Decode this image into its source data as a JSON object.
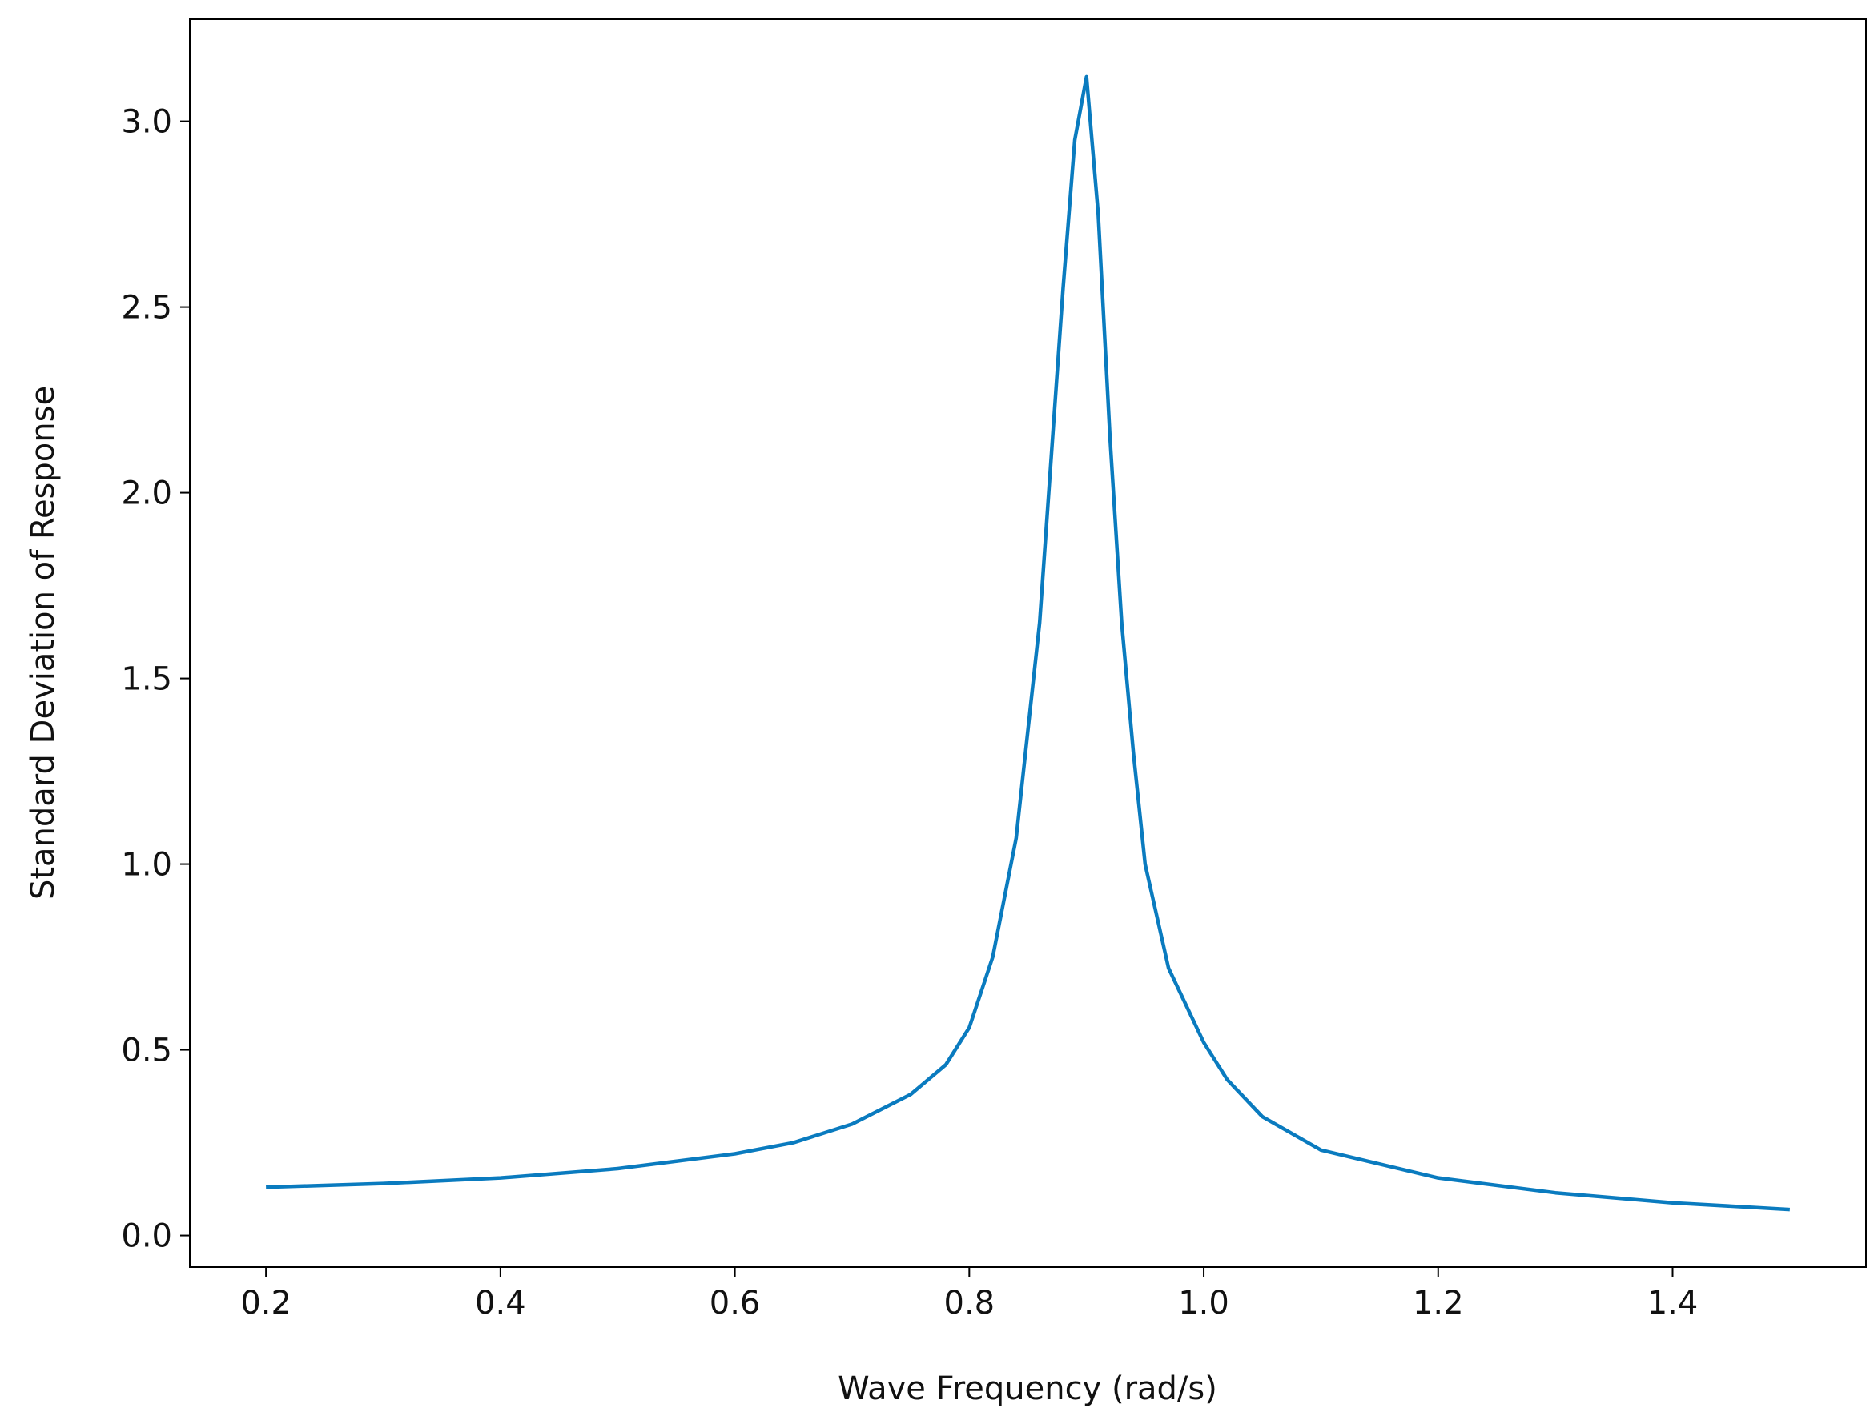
{
  "chart_data": {
    "type": "line",
    "xlabel": "Wave Frequency (rad/s)",
    "ylabel": "Standard Deviation of Response",
    "x": [
      0.2,
      0.3,
      0.4,
      0.5,
      0.6,
      0.65,
      0.7,
      0.75,
      0.78,
      0.8,
      0.82,
      0.84,
      0.86,
      0.87,
      0.88,
      0.89,
      0.9,
      0.91,
      0.92,
      0.93,
      0.94,
      0.95,
      0.97,
      1.0,
      1.02,
      1.05,
      1.1,
      1.2,
      1.3,
      1.4,
      1.5
    ],
    "series": [
      {
        "color": "#0a7bbf",
        "values": [
          0.13,
          0.14,
          0.155,
          0.18,
          0.22,
          0.25,
          0.3,
          0.38,
          0.46,
          0.56,
          0.75,
          1.07,
          1.65,
          2.1,
          2.55,
          2.95,
          3.12,
          2.75,
          2.15,
          1.65,
          1.3,
          1.0,
          0.72,
          0.52,
          0.42,
          0.32,
          0.23,
          0.155,
          0.115,
          0.088,
          0.07
        ]
      }
    ],
    "xlim": [
      0.135,
      1.565
    ],
    "ylim": [
      -0.085,
      3.275
    ],
    "xticks": [
      {
        "value": 0.2,
        "label": "0.2"
      },
      {
        "value": 0.4,
        "label": "0.4"
      },
      {
        "value": 0.6,
        "label": "0.6"
      },
      {
        "value": 0.8,
        "label": "0.8"
      },
      {
        "value": 1.0,
        "label": "1.0"
      },
      {
        "value": 1.2,
        "label": "1.2"
      },
      {
        "value": 1.4,
        "label": "1.4"
      }
    ],
    "yticks": [
      {
        "value": 0.0,
        "label": "0.0"
      },
      {
        "value": 0.5,
        "label": "0.5"
      },
      {
        "value": 1.0,
        "label": "1.0"
      },
      {
        "value": 1.5,
        "label": "1.5"
      },
      {
        "value": 2.0,
        "label": "2.0"
      },
      {
        "value": 2.5,
        "label": "2.5"
      },
      {
        "value": 3.0,
        "label": "3.0"
      }
    ],
    "grid": false
  }
}
